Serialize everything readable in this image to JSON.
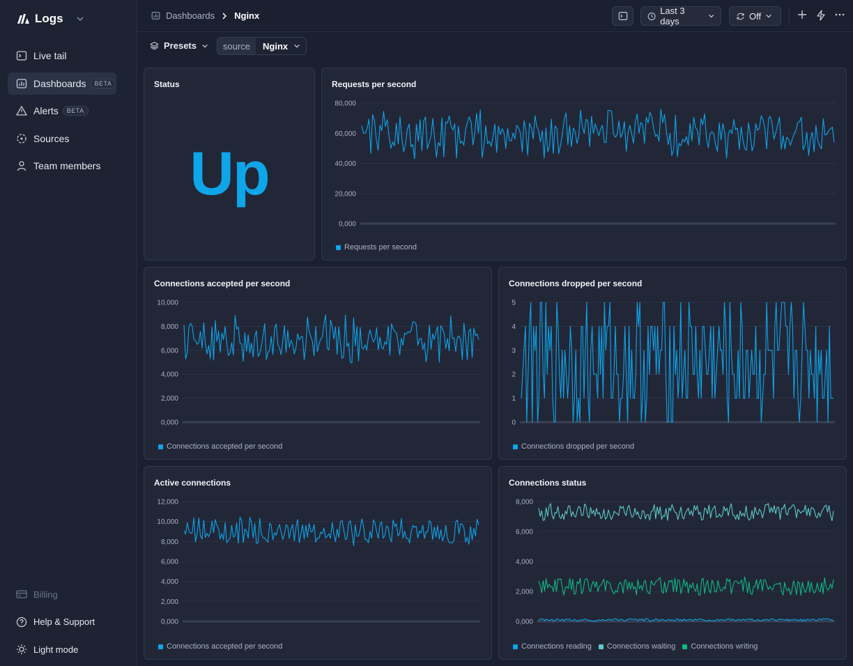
{
  "app": {
    "name": "Logs"
  },
  "sidebar": {
    "items": [
      {
        "label": "Live tail",
        "icon": "terminal-icon"
      },
      {
        "label": "Dashboards",
        "icon": "chart-icon",
        "badge": "BETA",
        "active": true
      },
      {
        "label": "Alerts",
        "icon": "warning-icon",
        "badge": "BETA"
      },
      {
        "label": "Sources",
        "icon": "sources-icon"
      },
      {
        "label": "Team members",
        "icon": "user-icon"
      }
    ],
    "bottom": [
      {
        "label": "Billing",
        "icon": "card-icon"
      },
      {
        "label": "Help & Support",
        "icon": "help-icon"
      },
      {
        "label": "Light mode",
        "icon": "sun-icon"
      }
    ]
  },
  "header": {
    "breadcrumb_parent": "Dashboards",
    "breadcrumb_current": "Nginx",
    "time_range": "Last 3 days",
    "refresh": "Off"
  },
  "filters": {
    "presets_label": "Presets",
    "source_key": "source",
    "source_value": "Nginx"
  },
  "colors": {
    "accent": "#0ea5e9",
    "teal": "#5ccbc8",
    "green": "#10b981"
  },
  "panels": {
    "status": {
      "title": "Status",
      "value": "Up"
    },
    "rps": {
      "title": "Requests per second",
      "legend": [
        "Requests per second"
      ]
    },
    "accepted": {
      "title": "Connections accepted per second",
      "legend": [
        "Connections accepted per second"
      ]
    },
    "dropped": {
      "title": "Connections dropped per second",
      "legend": [
        "Connections dropped per second"
      ]
    },
    "active": {
      "title": "Active connections",
      "legend": [
        "Connections accepted per second"
      ]
    },
    "cstatus": {
      "title": "Connections status",
      "legend": [
        "Connections reading",
        "Connections waiting",
        "Connections writing"
      ]
    }
  },
  "chart_data": [
    {
      "id": "rps",
      "type": "line",
      "ylim": [
        0,
        80000
      ],
      "yticks": [
        "0,000",
        "20,000",
        "40,000",
        "60,000",
        "80,000"
      ],
      "series": [
        {
          "name": "Requests per second",
          "range": [
            43000,
            76000
          ],
          "color": "#0ea5e9"
        }
      ]
    },
    {
      "id": "accepted",
      "type": "line",
      "ylim": [
        0,
        10000
      ],
      "yticks": [
        "0,000",
        "2,000",
        "4,000",
        "6,000",
        "8,000",
        "10,000"
      ],
      "series": [
        {
          "name": "Connections accepted per second",
          "range": [
            4800,
            9000
          ],
          "color": "#0ea5e9"
        }
      ]
    },
    {
      "id": "dropped",
      "type": "line",
      "ylim": [
        0,
        5
      ],
      "yticks": [
        "0",
        "1",
        "2",
        "3",
        "4",
        "5"
      ],
      "series": [
        {
          "name": "Connections dropped per second",
          "range": [
            0,
            5
          ],
          "color": "#0ea5e9"
        }
      ]
    },
    {
      "id": "active",
      "type": "line",
      "ylim": [
        0,
        12000
      ],
      "yticks": [
        "0,000",
        "2,000",
        "4,000",
        "6,000",
        "8,000",
        "10,000",
        "12,000"
      ],
      "series": [
        {
          "name": "Connections accepted per second",
          "range": [
            7500,
            10500
          ],
          "color": "#0ea5e9"
        }
      ]
    },
    {
      "id": "cstatus",
      "type": "line",
      "ylim": [
        0,
        8000
      ],
      "yticks": [
        "0,000",
        "2,000",
        "4,000",
        "6,000",
        "8,000"
      ],
      "series": [
        {
          "name": "Connections reading",
          "range": [
            0,
            200
          ],
          "color": "#0ea5e9"
        },
        {
          "name": "Connections waiting",
          "range": [
            6700,
            7900
          ],
          "color": "#5ccbc8"
        },
        {
          "name": "Connections writing",
          "range": [
            1700,
            3000
          ],
          "color": "#10b981"
        }
      ]
    }
  ]
}
